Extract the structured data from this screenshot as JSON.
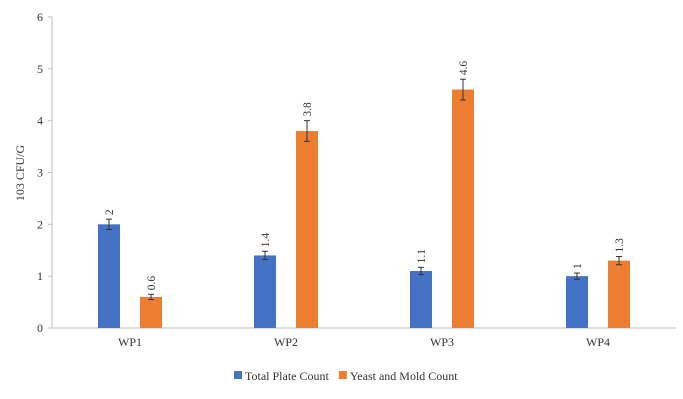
{
  "chart_data": {
    "type": "bar",
    "title": "",
    "xlabel": "",
    "ylabel": "103 CFU/G",
    "ylim": [
      0,
      6
    ],
    "yticks": [
      0,
      1,
      2,
      3,
      4,
      5,
      6
    ],
    "grid": false,
    "legend_position": "bottom",
    "categories": [
      "WP1",
      "WP2",
      "WP3",
      "WP4"
    ],
    "series": [
      {
        "name": "Total Plate Count",
        "color": "#4472C4",
        "values": [
          2,
          1.4,
          1.1,
          1
        ],
        "labels": [
          "2",
          "1.4",
          "1.1",
          "1"
        ],
        "errors": [
          0.1,
          0.08,
          0.07,
          0.06
        ]
      },
      {
        "name": "Yeast and Mold Count",
        "color": "#ED7D31",
        "values": [
          0.6,
          3.8,
          4.6,
          1.3
        ],
        "labels": [
          "0.6",
          "3.8",
          "4.6",
          "1.3"
        ],
        "errors": [
          0.05,
          0.2,
          0.2,
          0.08
        ]
      }
    ]
  }
}
